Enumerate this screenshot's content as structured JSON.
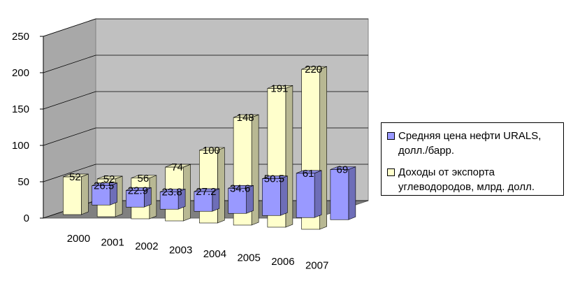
{
  "chart_data": {
    "type": "bar",
    "categories": [
      "2000",
      "2001",
      "2002",
      "2003",
      "2004",
      "2005",
      "2006",
      "2007"
    ],
    "series": [
      {
        "name": "Средняя цена нефти URALS, долл./барр.",
        "values": [
          26.5,
          22.9,
          23.8,
          27.2,
          34.6,
          50.5,
          61,
          69
        ],
        "color": "#9999ff"
      },
      {
        "name": "Доходы от экспорта углеводородов, млрд. долл.",
        "values": [
          52,
          52,
          56,
          74,
          100,
          148,
          191,
          220
        ],
        "color": "#ffffcc"
      }
    ],
    "data_labels": [
      [
        "26.5",
        "22.9",
        "23.8",
        "27.2",
        "34.6",
        "50.5",
        "61",
        "69"
      ],
      [
        "52",
        "52",
        "56",
        "74",
        "100",
        "148",
        "191",
        "220"
      ]
    ],
    "yticks": [
      "0",
      "50",
      "100",
      "150",
      "200",
      "250"
    ],
    "ylim": [
      0,
      250
    ],
    "grid": true,
    "legend_position": "right",
    "title": "",
    "xlabel": "",
    "ylabel": ""
  }
}
